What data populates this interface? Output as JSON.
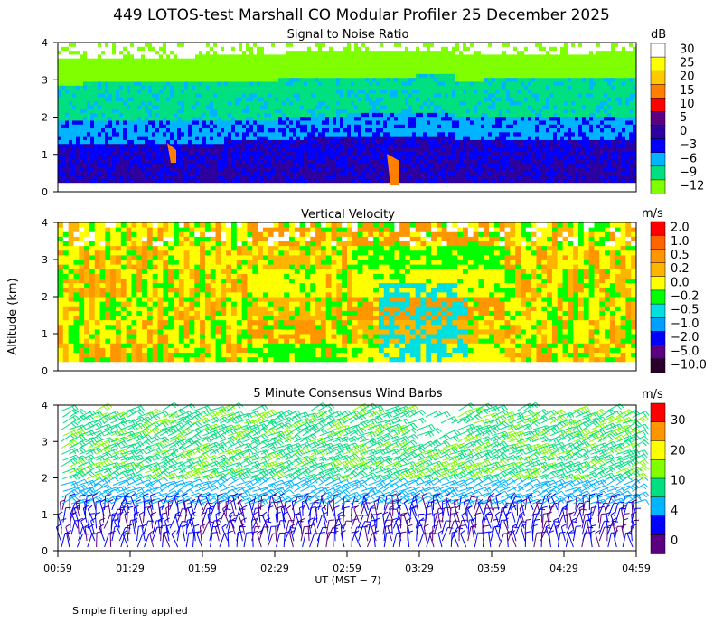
{
  "figure_title": "449 LOTOS-test Marshall CO Modular Profiler 25 December 2025",
  "ylabel": "Altitude (km)",
  "footnote": "Simple filtering applied",
  "chart_data": [
    {
      "type": "heatmap",
      "id": "snr",
      "title": "Signal to Noise Ratio",
      "unit": "dB",
      "x_range": [
        "00:59",
        "04:59"
      ],
      "ylim": [
        0,
        4
      ],
      "y_ticks": [
        "0",
        "1",
        "2",
        "3",
        "4"
      ],
      "legend": {
        "labels": [
          "30",
          "25",
          "20",
          "15",
          "10",
          "5",
          "0",
          "−3",
          "−6",
          "−9",
          "−12"
        ],
        "colors": [
          "#ffffff",
          "#ffff00",
          "#ffc800",
          "#ff7f00",
          "#ff0000",
          "#5a0080",
          "#2d00a0",
          "#0000ff",
          "#00b4ff",
          "#00e080",
          "#80ff00"
        ]
      },
      "layers": [
        {
          "altitude_km": [
            0.25,
            1.3
          ],
          "level_db": -1
        },
        {
          "altitude_km": [
            1.3,
            1.9
          ],
          "level_db": -6
        },
        {
          "altitude_km": [
            1.9,
            2.9
          ],
          "level_db": -9
        },
        {
          "altitude_km": [
            2.9,
            3.6
          ],
          "level_db": -12
        },
        {
          "altitude_km": [
            3.6,
            4.0
          ],
          "level_db": 30
        }
      ]
    },
    {
      "type": "heatmap",
      "id": "vv",
      "title": "Vertical Velocity",
      "unit": "m/s",
      "x_range": [
        "00:59",
        "04:59"
      ],
      "ylim": [
        0,
        4
      ],
      "y_ticks": [
        "0",
        "1",
        "2",
        "3",
        "4"
      ],
      "legend": {
        "labels": [
          "2.0",
          "1.0",
          "0.5",
          "0.2",
          "0.0",
          "−0.2",
          "−0.5",
          "−1.0",
          "−2.0",
          "−5.0",
          "−10.0"
        ],
        "colors": [
          "#ff0000",
          "#ff6400",
          "#ff9600",
          "#ffb400",
          "#ffff00",
          "#00ff00",
          "#00e0e0",
          "#00a0ff",
          "#0000ff",
          "#5a0080",
          "#280028"
        ]
      }
    },
    {
      "type": "wind_barbs",
      "id": "wind",
      "title": "5 Minute Consensus Wind Barbs",
      "unit": "m/s",
      "x_ticks": [
        "00:59",
        "01:29",
        "01:59",
        "02:29",
        "02:59",
        "03:29",
        "03:59",
        "04:29",
        "04:59"
      ],
      "xlabel": "UT  (MST − 7)",
      "ylim": [
        0,
        4
      ],
      "y_ticks": [
        "0",
        "1",
        "2",
        "3",
        "4"
      ],
      "legend": {
        "labels": [
          "30",
          "20",
          "10",
          "4",
          "0"
        ],
        "colors": [
          "#ff0000",
          "#ff9600",
          "#ffff00",
          "#80ff00",
          "#00e080",
          "#00b4ff",
          "#0000ff",
          "#5a0080"
        ]
      },
      "speed_by_altitude": [
        {
          "altitude_km": 0.5,
          "speed_ms": 3
        },
        {
          "altitude_km": 1.5,
          "speed_ms": 6
        },
        {
          "altitude_km": 2.5,
          "speed_ms": 9
        },
        {
          "altitude_km": 3.5,
          "speed_ms": 10
        }
      ]
    }
  ]
}
